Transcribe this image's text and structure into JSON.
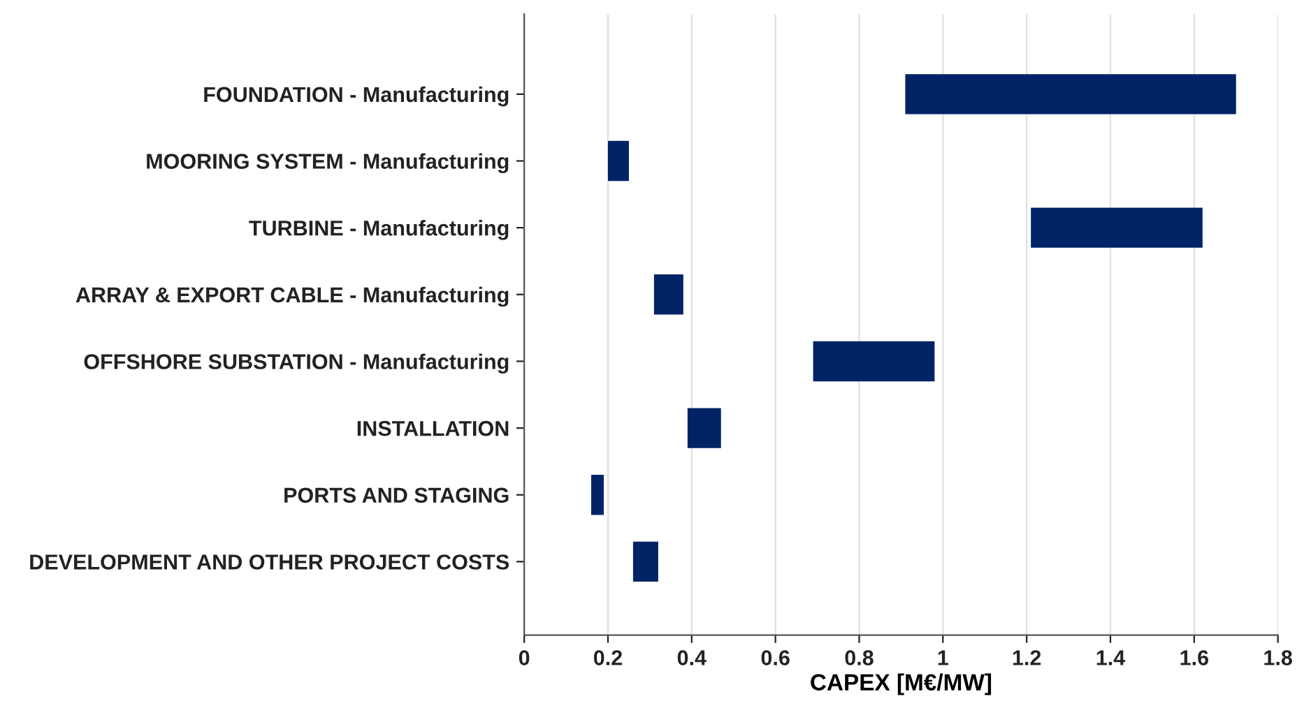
{
  "chart_data": {
    "type": "bar",
    "orientation": "horizontal",
    "xlabel": "CAPEX [M€/MW]",
    "categories": [
      "FOUNDATION - Manufacturing",
      "MOORING SYSTEM - Manufacturing",
      "TURBINE - Manufacturing",
      "ARRAY & EXPORT CABLE - Manufacturing",
      "OFFSHORE SUBSTATION - Manufacturing",
      "INSTALLATION",
      "PORTS AND STAGING",
      "DEVELOPMENT AND OTHER PROJECT COSTS"
    ],
    "base": [
      0.91,
      0.2,
      1.21,
      0.31,
      0.69,
      0.39,
      0.16,
      0.26
    ],
    "values": [
      0.79,
      0.05,
      0.41,
      0.07,
      0.29,
      0.08,
      0.03,
      0.06
    ],
    "color": "#002366",
    "xlim": [
      0,
      1.8
    ],
    "xticks": [
      0,
      0.2,
      0.4,
      0.6,
      0.8,
      1,
      1.2,
      1.4,
      1.6,
      1.8
    ],
    "grid": "x"
  }
}
